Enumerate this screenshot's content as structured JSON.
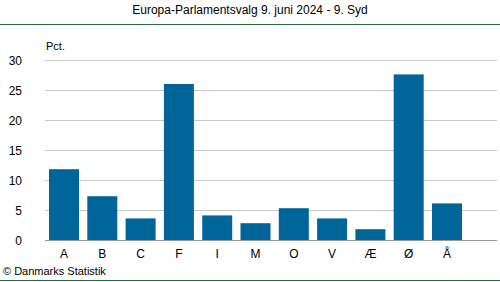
{
  "chart_data": {
    "type": "bar",
    "title": "Europa-Parlamentsvalg 9. juni 2024 - 9. Syd",
    "y_label": "Pct.",
    "source": "© Danmarks Statistik",
    "categories": [
      "A",
      "B",
      "C",
      "F",
      "I",
      "M",
      "O",
      "V",
      "Æ",
      "Ø",
      "Å"
    ],
    "values": [
      11.8,
      7.3,
      3.6,
      26.0,
      4.1,
      2.8,
      5.3,
      3.6,
      1.8,
      27.6,
      6.1
    ],
    "color": "#00669a",
    "ylim": [
      0,
      30
    ],
    "yticks": [
      0,
      5,
      10,
      15,
      20,
      25,
      30
    ],
    "grid": true
  }
}
